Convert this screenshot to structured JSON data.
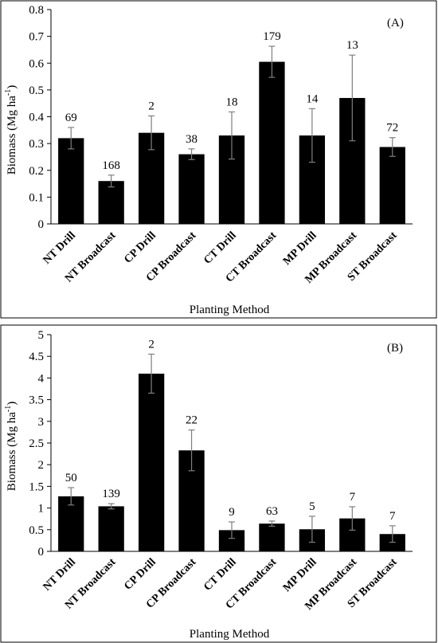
{
  "chart_data": [
    {
      "type": "bar",
      "panel_label": "(A)",
      "categories": [
        "NT Drill",
        "NT Broadcast",
        "CP Drill",
        "CP Broadcast",
        "CT Drill",
        "CT Broadcast",
        "MP Drill",
        "MP Broadcast",
        "ST Broadcast"
      ],
      "values": [
        0.32,
        0.16,
        0.34,
        0.26,
        0.33,
        0.605,
        0.33,
        0.47,
        0.287
      ],
      "errors": [
        0.04,
        0.022,
        0.063,
        0.02,
        0.088,
        0.058,
        0.1,
        0.16,
        0.035
      ],
      "data_labels": [
        "69",
        "168",
        "2",
        "38",
        "18",
        "179",
        "14",
        "13",
        "72"
      ],
      "xlabel": "Planting Method",
      "ylabel": "Biomass (Mg ha",
      "ylabel_sup": "-1",
      "ylabel_end": ")",
      "ylim": [
        0,
        0.8
      ],
      "yticks": [
        0,
        0.1,
        0.2,
        0.3,
        0.4,
        0.5,
        0.6,
        0.7,
        0.8
      ],
      "ytick_labels": [
        "0",
        "0.1",
        "0.2",
        "0.3",
        "0.4",
        "0.5",
        "0.6",
        "0.7",
        "0.8"
      ],
      "grid": false,
      "bar_color": "#000000"
    },
    {
      "type": "bar",
      "panel_label": "(B)",
      "categories": [
        "NT Drill",
        "NT Broadcast",
        "CP Drill",
        "CP Broadcast",
        "CT Drill",
        "CT Broadcast",
        "MP Drill",
        "MP Broadcast",
        "ST Broadcast"
      ],
      "values": [
        1.27,
        1.04,
        4.1,
        2.33,
        0.49,
        0.64,
        0.51,
        0.76,
        0.4
      ],
      "errors": [
        0.2,
        0.06,
        0.45,
        0.47,
        0.19,
        0.06,
        0.3,
        0.27,
        0.19
      ],
      "data_labels": [
        "50",
        "139",
        "2",
        "22",
        "9",
        "63",
        "5",
        "7",
        "7"
      ],
      "xlabel": "Planting Method",
      "ylabel": "Biomass (Mg ha",
      "ylabel_sup": "-1",
      "ylabel_end": ")",
      "ylim": [
        0,
        5
      ],
      "yticks": [
        0,
        0.5,
        1,
        1.5,
        2,
        2.5,
        3,
        3.5,
        4,
        4.5,
        5
      ],
      "ytick_labels": [
        "0",
        "0.5",
        "1",
        "1.5",
        "2",
        "2.5",
        "3",
        "3.5",
        "4",
        "4.5",
        "5"
      ],
      "grid": false,
      "bar_color": "#000000"
    }
  ]
}
